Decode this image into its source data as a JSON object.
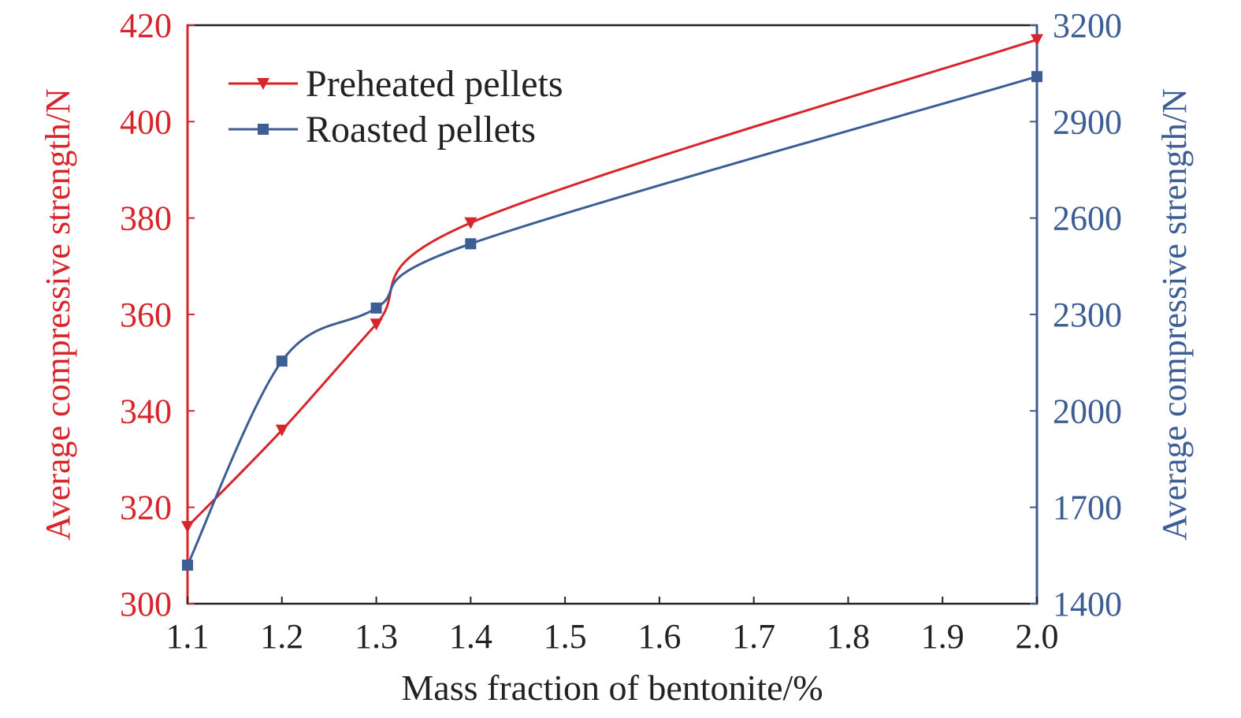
{
  "chart_data": {
    "type": "line",
    "xlabel": "Mass fraction of bentonite/%",
    "ylabel_left": "Average compressive strength/N",
    "ylabel_right": "Average compressive strength/N",
    "xlim": [
      1.1,
      2.0
    ],
    "ylim_left": [
      300,
      420
    ],
    "ylim_right": [
      1400,
      3200
    ],
    "x_ticks": [
      "1.1",
      "1.2",
      "1.3",
      "1.4",
      "1.5",
      "1.6",
      "1.7",
      "1.8",
      "1.9",
      "2.0"
    ],
    "y_ticks_left": [
      "300",
      "320",
      "340",
      "360",
      "380",
      "400",
      "420"
    ],
    "y_ticks_right": [
      "1400",
      "1700",
      "2000",
      "2300",
      "2600",
      "2900",
      "3200"
    ],
    "grid": false,
    "legend_position": "top-left",
    "series": [
      {
        "name": "Preheated pellets",
        "axis": "left",
        "marker": "down-triangle",
        "color": "#d7262b",
        "x": [
          1.1,
          1.2,
          1.3,
          1.4,
          2.0
        ],
        "values": [
          316,
          336,
          358,
          379,
          417
        ]
      },
      {
        "name": "Roasted pellets",
        "axis": "right",
        "marker": "square",
        "color": "#3d5e94",
        "x": [
          1.1,
          1.2,
          1.3,
          1.4,
          2.0
        ],
        "values": [
          1520,
          2155,
          2320,
          2520,
          3040
        ]
      }
    ]
  }
}
